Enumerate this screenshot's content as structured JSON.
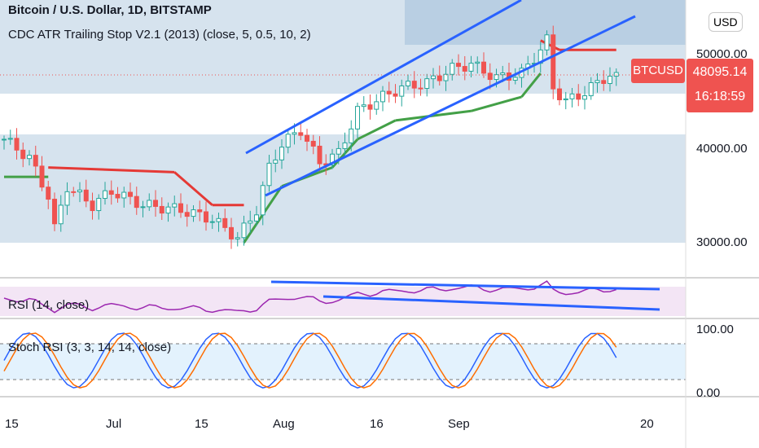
{
  "header": {
    "symbol_title": "Bitcoin / U.S. Dollar, 1D, BITSTAMP",
    "indicator": "CDC ATR Trailing Stop V2.1 (2013) (close, 5, 0.5, 10, 2)",
    "currency_button": "USD"
  },
  "rsi": {
    "label": "RSI (14, close)"
  },
  "stoch": {
    "label": "Stoch RSI (3, 3, 14, 14, close)",
    "ticks": [
      "100.00",
      "0.00"
    ]
  },
  "last_price": {
    "symbol": "BTCUSD",
    "price": "48095.14",
    "countdown": "16:18:59"
  },
  "colors": {
    "up": "#26a69a",
    "down": "#ef5350",
    "trend": "#2962ff",
    "rsi": "#9c27b0",
    "k": "#2962ff",
    "d": "#ff6d00"
  },
  "chart_data": {
    "type": "candlestick",
    "title": "Bitcoin / U.S. Dollar, 1D, BITSTAMP",
    "y_ticks": [
      "50000.00",
      "40000.00",
      "30000.00"
    ],
    "ylim": [
      26000,
      56000
    ],
    "x_ticks": [
      "15",
      "Jul",
      "15",
      "Aug",
      "16",
      "Sep",
      "20"
    ],
    "price_path": [
      [
        0,
        41000
      ],
      [
        4,
        39000
      ],
      [
        7,
        35000
      ],
      [
        8,
        31500
      ],
      [
        10,
        36000
      ],
      [
        14,
        34000
      ],
      [
        17,
        35500
      ],
      [
        22,
        34000
      ],
      [
        28,
        33500
      ],
      [
        33,
        32500
      ],
      [
        37,
        30500
      ],
      [
        40,
        33500
      ],
      [
        42,
        38000
      ],
      [
        44,
        40500
      ],
      [
        47,
        42000
      ],
      [
        50,
        38500
      ],
      [
        53,
        39500
      ],
      [
        56,
        44000
      ],
      [
        60,
        45500
      ],
      [
        63,
        46500
      ],
      [
        67,
        47000
      ],
      [
        71,
        48500
      ],
      [
        74,
        49000
      ],
      [
        78,
        47500
      ],
      [
        82,
        48000
      ],
      [
        85,
        50500
      ],
      [
        86,
        51500
      ],
      [
        87,
        46500
      ],
      [
        89,
        45000
      ],
      [
        92,
        46000
      ],
      [
        95,
        47500
      ],
      [
        97,
        48095
      ]
    ],
    "trailing_stop": [
      [
        0,
        37000,
        "up"
      ],
      [
        7,
        37000,
        "up"
      ],
      [
        7,
        38000,
        "down"
      ],
      [
        27,
        37500,
        "down"
      ],
      [
        33,
        34000,
        "down"
      ],
      [
        38,
        34000,
        "down"
      ],
      [
        38,
        30000,
        "up"
      ],
      [
        44,
        36000,
        "up"
      ],
      [
        52,
        38000,
        "up"
      ],
      [
        56,
        41000,
        "up"
      ],
      [
        62,
        43000,
        "up"
      ],
      [
        74,
        44000,
        "up"
      ],
      [
        82,
        45500,
        "up"
      ],
      [
        85,
        48000,
        "up"
      ],
      [
        85,
        51500,
        "down"
      ],
      [
        88,
        50500,
        "down"
      ],
      [
        97,
        50500,
        "down"
      ]
    ]
  }
}
